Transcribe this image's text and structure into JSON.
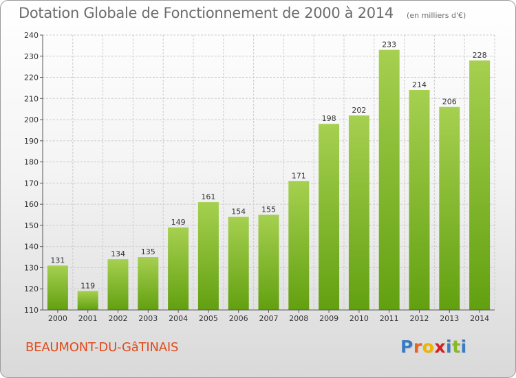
{
  "header": {
    "title": "Dotation Globale de Fonctionnement de 2000 à 2014",
    "unit": "(en milliers d'€)"
  },
  "footer": {
    "commune": "BEAUMONT-DU-GâTINAIS",
    "logo_letters": [
      "P",
      "r",
      "o",
      "x",
      "i",
      "t",
      "i"
    ],
    "logo_colors": [
      "#3a7cc4",
      "#e8641c",
      "#f0b400",
      "#d42020",
      "#3a7cc4",
      "#8ab828",
      "#3a7cc4"
    ]
  },
  "colors": {
    "bar_top": "#a6d050",
    "bar_bottom": "#62a010",
    "grid": "#cccccc",
    "axis": "#555555"
  },
  "chart_data": {
    "type": "bar",
    "title": "Dotation Globale de Fonctionnement de 2000 à 2014",
    "subtitle": "(en milliers d'€)",
    "categories": [
      "2000",
      "2001",
      "2002",
      "2003",
      "2004",
      "2005",
      "2006",
      "2007",
      "2008",
      "2009",
      "2010",
      "2011",
      "2012",
      "2013",
      "2014"
    ],
    "values": [
      131,
      119,
      134,
      135,
      149,
      161,
      154,
      155,
      171,
      198,
      202,
      233,
      214,
      206,
      228
    ],
    "ylim": [
      110,
      240
    ],
    "yticks": [
      110,
      120,
      130,
      140,
      150,
      160,
      170,
      180,
      190,
      200,
      210,
      220,
      230,
      240
    ],
    "xlabel": "",
    "ylabel": "",
    "grid": true
  }
}
